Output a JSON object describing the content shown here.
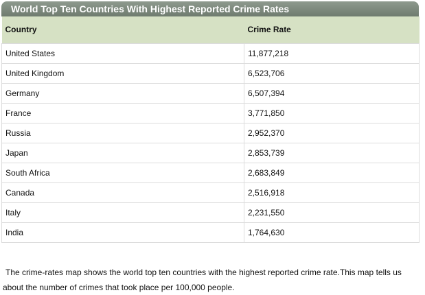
{
  "title": "World Top Ten Countries With Highest Reported Crime Rates",
  "headers": {
    "country": "Country",
    "crime_rate": "Crime Rate"
  },
  "rows": [
    {
      "country": "United States",
      "crime_rate": "11,877,218"
    },
    {
      "country": "United Kingdom",
      "crime_rate": "6,523,706"
    },
    {
      "country": "Germany",
      "crime_rate": "6,507,394"
    },
    {
      "country": "France",
      "crime_rate": "3,771,850"
    },
    {
      "country": "Russia",
      "crime_rate": "2,952,370"
    },
    {
      "country": "Japan",
      "crime_rate": "2,853,739"
    },
    {
      "country": "South Africa",
      "crime_rate": "2,683,849"
    },
    {
      "country": "Canada",
      "crime_rate": "2,516,918"
    },
    {
      "country": "Italy",
      "crime_rate": "2,231,550"
    },
    {
      "country": "India",
      "crime_rate": "1,764,630"
    }
  ],
  "footnote": "The crime-rates map shows the world top ten countries with the highest reported crime rate.This map tells us about the number of crimes that took place per 100,000 people.",
  "colors": {
    "title_bar": "#7f8b7f",
    "header_row": "#d6e1c4",
    "cell_border": "#dcdcdc"
  }
}
